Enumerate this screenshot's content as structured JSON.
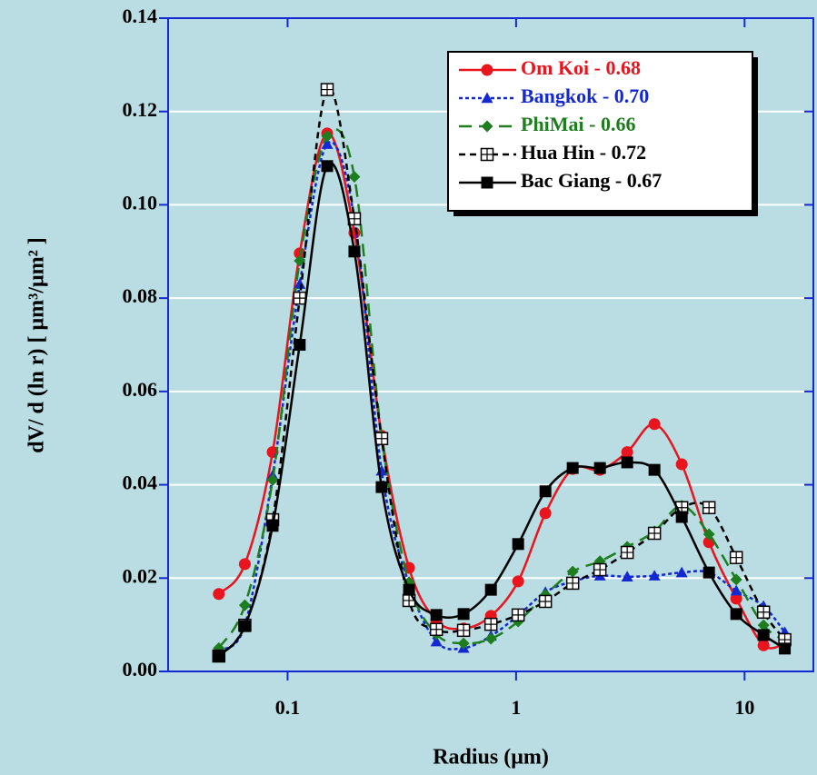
{
  "chart_data": {
    "type": "line",
    "xscale": "log",
    "grid": true,
    "legend": "upper right",
    "xlabel": "Radius (μm)",
    "ylabel": "dV/ d (ln r)  [ μm³/μm² ]",
    "xlim": [
      0.03,
      20
    ],
    "xticks": [
      0.1,
      1,
      10
    ],
    "ylim": [
      0,
      0.14
    ],
    "yticks": [
      {
        "value": 0,
        "label": "0.00"
      },
      {
        "value": 0.02,
        "label": "0.02"
      },
      {
        "value": 0.04,
        "label": "0.04"
      },
      {
        "value": 0.06,
        "label": "0.06"
      },
      {
        "value": 0.08,
        "label": "0.08"
      },
      {
        "value": 0.1,
        "label": "0.10"
      },
      {
        "value": 0.12,
        "label": "0.12"
      },
      {
        "value": 0.14,
        "label": "0.14"
      }
    ],
    "x": [
      0.05,
      0.065,
      0.086,
      0.113,
      0.149,
      0.196,
      0.258,
      0.34,
      0.448,
      0.589,
      0.776,
      1.021,
      1.344,
      1.769,
      2.328,
      3.064,
      4.033,
      5.309,
      6.987,
      9.197,
      12.105,
      15.0
    ],
    "series": [
      {
        "name": "Om Koi - 0.68",
        "color": "#e8141e",
        "dash": "solid",
        "marker": "circle",
        "values": [
          0.0166,
          0.023,
          0.047,
          0.0896,
          0.1153,
          0.094,
          0.0505,
          0.0222,
          0.0109,
          0.0092,
          0.0119,
          0.0193,
          0.0339,
          0.0434,
          0.0432,
          0.047,
          0.053,
          0.0444,
          0.0277,
          0.0156,
          0.0056,
          0.006
        ]
      },
      {
        "name": "Bangkok - 0.70",
        "color": "#1428d2",
        "dash": "dotted",
        "marker": "triangle",
        "values": [
          0.0045,
          0.0099,
          0.042,
          0.083,
          0.113,
          0.097,
          0.043,
          0.0187,
          0.0064,
          0.005,
          0.0076,
          0.012,
          0.017,
          0.0193,
          0.0205,
          0.0203,
          0.0205,
          0.0212,
          0.0212,
          0.0173,
          0.014,
          0.0084
        ]
      },
      {
        "name": "PhiMai - 0.66",
        "color": "#1e7d1e",
        "dash": "dashed",
        "marker": "diamond",
        "values": [
          0.005,
          0.0142,
          0.041,
          0.088,
          0.1147,
          0.106,
          0.0503,
          0.0191,
          0.008,
          0.006,
          0.007,
          0.0107,
          0.0164,
          0.0214,
          0.0236,
          0.0267,
          0.03,
          0.0355,
          0.0294,
          0.0197,
          0.0099,
          0.0066
        ]
      },
      {
        "name": "Hua Hin - 0.72",
        "color": "#000000",
        "dash": "short-dashed",
        "marker": "square-open",
        "values": [
          0.0033,
          0.0099,
          0.0325,
          0.08,
          0.1247,
          0.097,
          0.0499,
          0.0152,
          0.009,
          0.0088,
          0.0101,
          0.0121,
          0.015,
          0.0189,
          0.0218,
          0.0255,
          0.0296,
          0.0351,
          0.0351,
          0.0244,
          0.0127,
          0.0068
        ]
      },
      {
        "name": "Bac Giang - 0.67",
        "color": "#000000",
        "dash": "solid",
        "marker": "square",
        "values": [
          0.0033,
          0.0097,
          0.0312,
          0.07,
          0.1083,
          0.09,
          0.0395,
          0.0175,
          0.0121,
          0.0123,
          0.0175,
          0.0273,
          0.0386,
          0.0436,
          0.0436,
          0.0448,
          0.0432,
          0.0331,
          0.0212,
          0.0123,
          0.0078,
          0.0049
        ]
      }
    ]
  }
}
